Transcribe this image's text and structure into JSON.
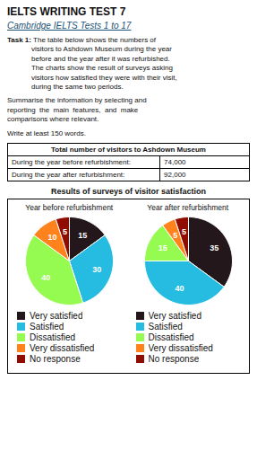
{
  "title": "IELTS WRITING TEST 7",
  "subtitle": "Cambridge IELTS Tests 1 to 17",
  "subtitle_color": "#1a5276",
  "annotations": [
    "Task 1:",
    " The table below shows the numbers of\nvisitors to Ashdown Museum during the year\nbefore and the year after it was refurbished.\nThe charts show the result of surveys asking\nvisitors how satisfied they were with their visit,\nduring the same two periods.",
    "Summarise the information by selecting and\nreporting  the  main  features,  and  make\ncomparisons where relevant.",
    "Write at least 150 words."
  ],
  "table": {
    "title": "Total number of visitors to Ashdown Museum",
    "rows": [
      [
        "During the year before refurbishment:",
        "74,000"
      ],
      [
        "During the year after refurbishment:",
        "92,000"
      ]
    ]
  },
  "charts_title": "Results of surveys of visitor satisfaction",
  "chart_data": [
    {
      "type": "pie",
      "title": "Year before refurbishment",
      "categories": [
        "Very satisfied",
        "Satisfied",
        "Dissatisfied",
        "Very dissatisfied",
        "No response"
      ],
      "values": [
        15,
        30,
        40,
        10,
        5
      ],
      "data_labels": true,
      "legend": "bottom"
    },
    {
      "type": "pie",
      "title": "Year after refurbishment",
      "categories": [
        "Very satisfied",
        "Satisfied",
        "Dissatisfied",
        "Very dissatisfied",
        "No response"
      ],
      "values": [
        35,
        40,
        15,
        5,
        5
      ],
      "data_labels": true,
      "legend": "bottom"
    }
  ]
}
